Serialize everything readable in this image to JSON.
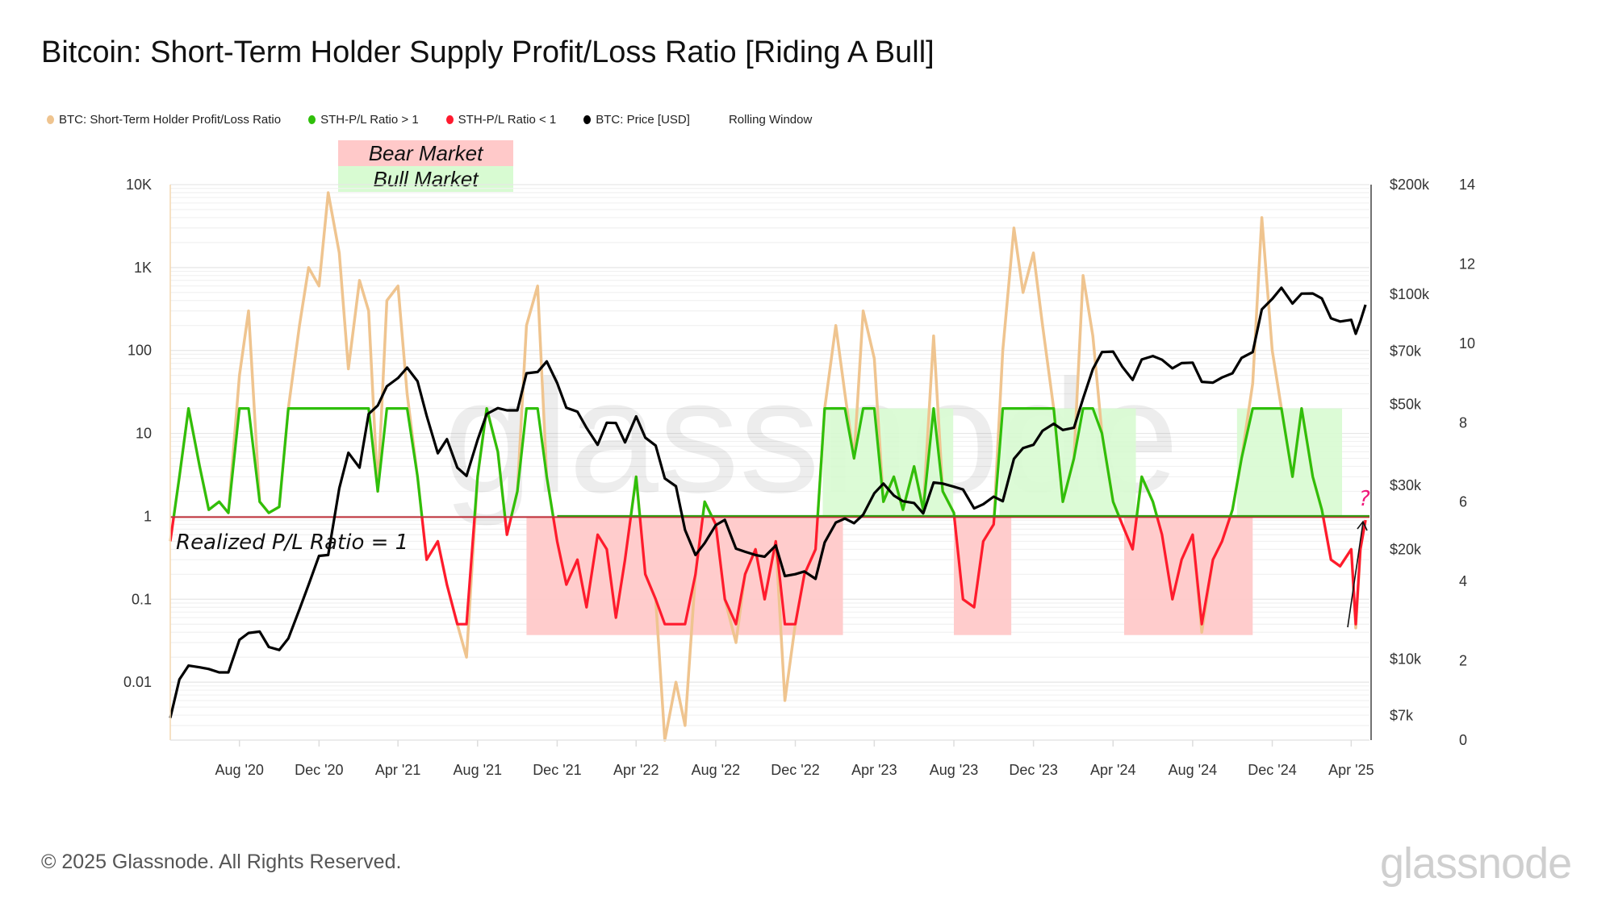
{
  "chart_data": {
    "type": "line",
    "title": "Bitcoin: Short-Term Holder Supply Profit/Loss Ratio [Riding A Bull]",
    "legend": [
      {
        "name": "BTC: Short-Term Holder Profit/Loss Ratio",
        "color": "#efc48f"
      },
      {
        "name": "STH-P/L Ratio > 1",
        "color": "#2fbf0a"
      },
      {
        "name": "STH-P/L Ratio < 1",
        "color": "#ff1a2e"
      },
      {
        "name": "BTC: Price [USD]",
        "color": "#000000"
      },
      {
        "name": "Rolling Window",
        "color": ""
      }
    ],
    "legend_position": "top-left",
    "zone_labels": {
      "bear": "Bear Market",
      "bull": "Bull Market"
    },
    "zone_colors": {
      "bear": "#ffc9c9",
      "bull": "#d8fbd2"
    },
    "annotations": {
      "reference_label": "Realized P/L Ratio = 1",
      "question": "?",
      "question_color": "#f0187a"
    },
    "watermark": "glassnode",
    "x_ticks": [
      "Aug '20",
      "Dec '20",
      "Apr '21",
      "Aug '21",
      "Dec '21",
      "Apr '22",
      "Aug '22",
      "Dec '22",
      "Apr '23",
      "Aug '23",
      "Dec '23",
      "Apr '24",
      "Aug '24",
      "Dec '24",
      "Apr '25"
    ],
    "x_tick_dates": [
      "2020-08-01",
      "2020-12-01",
      "2021-04-01",
      "2021-08-01",
      "2021-12-01",
      "2022-04-01",
      "2022-08-01",
      "2022-12-01",
      "2023-04-01",
      "2023-08-01",
      "2023-12-01",
      "2024-04-01",
      "2024-08-01",
      "2024-12-01",
      "2025-04-01"
    ],
    "xlim": [
      "2020-04-17",
      "2025-04-29"
    ],
    "y_left": {
      "scale": "log",
      "lim": [
        0.002,
        10000
      ],
      "ticks": [
        {
          "v": 10000,
          "label": "10K"
        },
        {
          "v": 1000,
          "label": "1K"
        },
        {
          "v": 100,
          "label": "100"
        },
        {
          "v": 10,
          "label": "10"
        },
        {
          "v": 1,
          "label": "1"
        },
        {
          "v": 0.1,
          "label": "0.1"
        },
        {
          "v": 0.01,
          "label": "0.01"
        }
      ]
    },
    "y_price": {
      "scale": "log",
      "lim": [
        6000,
        200000
      ],
      "ticks": [
        {
          "v": 200000,
          "label": "$200k"
        },
        {
          "v": 100000,
          "label": "$100k"
        },
        {
          "v": 70000,
          "label": "$70k"
        },
        {
          "v": 50000,
          "label": "$50k"
        },
        {
          "v": 30000,
          "label": "$30k"
        },
        {
          "v": 20000,
          "label": "$20k"
        },
        {
          "v": 10000,
          "label": "$10k"
        },
        {
          "v": 7000,
          "label": "$7k"
        }
      ]
    },
    "y_right": {
      "scale": "linear",
      "lim": [
        0,
        14
      ],
      "ticks": [
        "14",
        "12",
        "10",
        "8",
        "6",
        "4",
        "2",
        "0"
      ]
    },
    "clamp": [
      0.05,
      20
    ],
    "bear_zones": [
      [
        "2021-10-15",
        "2023-02-12",
        0.037,
        1
      ],
      [
        "2023-08-01",
        "2023-10-28",
        0.037,
        1
      ],
      [
        "2024-04-18",
        "2024-11-01",
        0.037,
        1
      ]
    ],
    "bull_zones": [
      [
        "2023-01-12",
        "2023-07-31",
        1,
        20
      ],
      [
        "2023-10-10",
        "2024-05-06",
        1,
        20
      ],
      [
        "2024-10-08",
        "2025-03-18",
        1,
        20
      ]
    ],
    "dates": [
      "2020-04-17",
      "2020-05-01",
      "2020-05-15",
      "2020-06-01",
      "2020-06-15",
      "2020-07-01",
      "2020-07-15",
      "2020-08-01",
      "2020-08-15",
      "2020-09-01",
      "2020-09-15",
      "2020-10-01",
      "2020-10-15",
      "2020-11-01",
      "2020-11-15",
      "2020-12-01",
      "2020-12-15",
      "2021-01-01",
      "2021-01-15",
      "2021-02-01",
      "2021-02-15",
      "2021-03-01",
      "2021-03-15",
      "2021-04-01",
      "2021-04-15",
      "2021-05-01",
      "2021-05-15",
      "2021-06-01",
      "2021-06-15",
      "2021-07-01",
      "2021-07-15",
      "2021-08-01",
      "2021-08-15",
      "2021-09-01",
      "2021-09-15",
      "2021-10-01",
      "2021-10-15",
      "2021-11-01",
      "2021-11-15",
      "2021-12-01",
      "2021-12-15",
      "2022-01-01",
      "2022-01-15",
      "2022-02-01",
      "2022-02-15",
      "2022-03-01",
      "2022-03-15",
      "2022-04-01",
      "2022-04-15",
      "2022-05-01",
      "2022-05-15",
      "2022-06-01",
      "2022-06-15",
      "2022-07-01",
      "2022-07-15",
      "2022-08-01",
      "2022-08-15",
      "2022-09-01",
      "2022-09-15",
      "2022-10-01",
      "2022-10-15",
      "2022-11-01",
      "2022-11-15",
      "2022-12-01",
      "2022-12-15",
      "2023-01-01",
      "2023-01-15",
      "2023-02-01",
      "2023-02-15",
      "2023-03-01",
      "2023-03-15",
      "2023-04-01",
      "2023-04-15",
      "2023-05-01",
      "2023-05-15",
      "2023-06-01",
      "2023-06-15",
      "2023-07-01",
      "2023-07-15",
      "2023-08-01",
      "2023-08-15",
      "2023-09-01",
      "2023-09-15",
      "2023-10-01",
      "2023-10-15",
      "2023-11-01",
      "2023-11-15",
      "2023-12-01",
      "2023-12-15",
      "2024-01-01",
      "2024-01-15",
      "2024-02-01",
      "2024-02-15",
      "2024-03-01",
      "2024-03-15",
      "2024-04-01",
      "2024-04-15",
      "2024-05-01",
      "2024-05-15",
      "2024-06-01",
      "2024-06-15",
      "2024-07-01",
      "2024-07-15",
      "2024-08-01",
      "2024-08-15",
      "2024-09-01",
      "2024-09-15",
      "2024-10-01",
      "2024-10-15",
      "2024-11-01",
      "2024-11-15",
      "2024-12-01",
      "2024-12-15",
      "2025-01-01",
      "2025-01-15",
      "2025-02-01",
      "2025-02-15",
      "2025-03-01",
      "2025-03-15",
      "2025-04-01",
      "2025-04-08",
      "2025-04-15",
      "2025-04-23"
    ],
    "sth_pl_ratio": [
      0.5,
      3,
      20,
      4,
      1.2,
      1.5,
      1.1,
      50,
      300,
      1.5,
      1.1,
      1.3,
      20,
      200,
      1000,
      600,
      8000,
      1500,
      60,
      700,
      300,
      2,
      400,
      600,
      30,
      3,
      0.3,
      0.5,
      0.15,
      0.05,
      0.02,
      3,
      20,
      6,
      0.6,
      2,
      200,
      600,
      3,
      0.5,
      0.15,
      0.3,
      0.08,
      0.6,
      0.4,
      0.06,
      0.3,
      3,
      0.2,
      0.1,
      0.002,
      0.01,
      0.003,
      0.2,
      1.5,
      0.8,
      0.1,
      0.03,
      0.2,
      0.4,
      0.1,
      0.5,
      0.006,
      0.05,
      0.2,
      0.4,
      20,
      200,
      30,
      5,
      300,
      80,
      1.5,
      3,
      1.2,
      4,
      1.2,
      150,
      2,
      1.1,
      0.1,
      0.08,
      0.5,
      0.8,
      100,
      3000,
      500,
      1500,
      200,
      20,
      1.5,
      5,
      800,
      150,
      10,
      1.5,
      0.8,
      0.4,
      3,
      1.5,
      0.6,
      0.1,
      0.3,
      0.6,
      0.04,
      0.3,
      0.5,
      1.2,
      5,
      40,
      4000,
      100,
      20,
      3,
      20,
      3,
      1.2,
      0.3,
      0.25,
      0.4,
      0.045,
      0.4,
      0.9
    ],
    "price_usd": [
      6900,
      8800,
      9600,
      9500,
      9400,
      9200,
      9200,
      11300,
      11800,
      11900,
      10800,
      10600,
      11400,
      13700,
      16000,
      19200,
      19300,
      29400,
      36800,
      33500,
      47000,
      49600,
      56000,
      59000,
      63000,
      57800,
      46500,
      36700,
      40100,
      33500,
      31800,
      39900,
      47000,
      48800,
      48100,
      48100,
      60800,
      61300,
      65500,
      57200,
      48900,
      47700,
      43100,
      38700,
      44500,
      44400,
      39300,
      46300,
      40500,
      38500,
      31300,
      29800,
      22600,
      19300,
      20800,
      23300,
      24100,
      20100,
      19700,
      19300,
      19100,
      20500,
      16900,
      17100,
      17400,
      16600,
      20900,
      23700,
      24300,
      23600,
      24900,
      28500,
      30300,
      28100,
      27100,
      26800,
      25100,
      30500,
      30300,
      29700,
      29200,
      25900,
      26600,
      27900,
      27100,
      35400,
      37900,
      38700,
      42300,
      44200,
      42500,
      43100,
      51800,
      62400,
      69500,
      69700,
      63400,
      58300,
      66300,
      67800,
      66200,
      62700,
      64800,
      65000,
      57600,
      57300,
      59200,
      60800,
      67000,
      69500,
      91000,
      97200,
      104300,
      94400,
      100500,
      100600,
      97500,
      86000,
      84300,
      85200,
      78000,
      84500,
      93700
    ]
  },
  "footer": {
    "copyright": "© 2025 Glassnode. All Rights Reserved.",
    "logo": "glassnode"
  }
}
